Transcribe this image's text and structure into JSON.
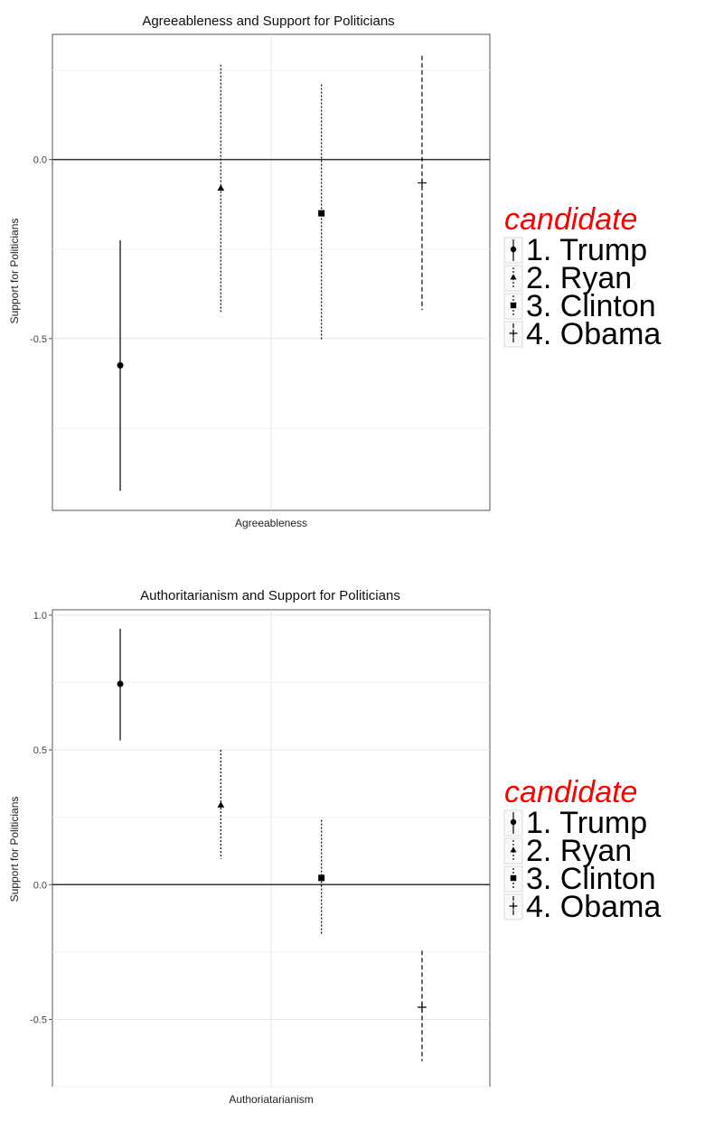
{
  "chart_data": [
    {
      "type": "scatter",
      "title": "Agreeableness and Support for Politicians",
      "xlabel": "Agreeableness",
      "ylabel": "Support for Politicians",
      "ylim": [
        -0.98,
        0.35
      ],
      "yticks": [
        {
          "value": 0.0,
          "label": "0.0"
        },
        {
          "value": -0.5,
          "label": "-0.5"
        }
      ],
      "grid": true,
      "reference_line": 0.0,
      "legend": {
        "title": "candidate",
        "position": "right"
      },
      "series": [
        {
          "name": "1. Trump",
          "marker": "circle",
          "line": "solid",
          "estimate": -0.575,
          "lower": -0.925,
          "upper": -0.225
        },
        {
          "name": "2. Ryan",
          "marker": "triangle",
          "line": "dotted",
          "estimate": -0.08,
          "lower": -0.425,
          "upper": 0.265
        },
        {
          "name": "3. Clinton",
          "marker": "square",
          "line": "dotted",
          "estimate": -0.15,
          "lower": -0.505,
          "upper": 0.21
        },
        {
          "name": "4. Obama",
          "marker": "plus",
          "line": "dashed",
          "estimate": -0.065,
          "lower": -0.42,
          "upper": 0.29
        }
      ]
    },
    {
      "type": "scatter",
      "title": "Authoritarianism and Support for Politicians",
      "xlabel": "Authoriatarianism",
      "ylabel": "Support for Politicians",
      "ylim": [
        -0.75,
        1.02
      ],
      "yticks": [
        {
          "value": 1.0,
          "label": "1.0"
        },
        {
          "value": 0.5,
          "label": "0.5"
        },
        {
          "value": 0.0,
          "label": "0.0"
        },
        {
          "value": -0.5,
          "label": "-0.5"
        }
      ],
      "grid": true,
      "reference_line": 0.0,
      "legend": {
        "title": "candidate",
        "position": "right"
      },
      "series": [
        {
          "name": "1. Trump",
          "marker": "circle",
          "line": "solid",
          "estimate": 0.745,
          "lower": 0.535,
          "upper": 0.95
        },
        {
          "name": "2. Ryan",
          "marker": "triangle",
          "line": "dotted",
          "estimate": 0.295,
          "lower": 0.095,
          "upper": 0.5
        },
        {
          "name": "3. Clinton",
          "marker": "square",
          "line": "dotted",
          "estimate": 0.025,
          "lower": -0.185,
          "upper": 0.24
        },
        {
          "name": "4. Obama",
          "marker": "plus",
          "line": "dashed",
          "estimate": -0.455,
          "lower": -0.655,
          "upper": -0.245
        }
      ]
    }
  ]
}
